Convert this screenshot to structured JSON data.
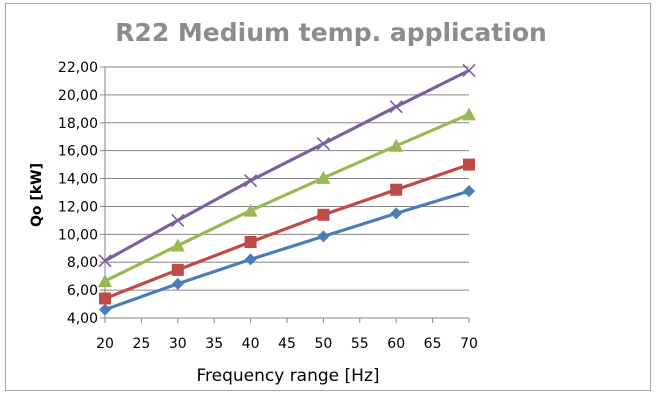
{
  "chart_data": {
    "type": "line",
    "title": "R22 Medium temp. application",
    "xlabel": "Frequency range [Hz]",
    "ylabel": "Qo [kW]",
    "xlim": [
      20,
      70
    ],
    "ylim": [
      4,
      22
    ],
    "x_ticks": [
      "20",
      "25",
      "30",
      "35",
      "40",
      "45",
      "50",
      "55",
      "60",
      "65",
      "70"
    ],
    "y_ticks": [
      "4,00",
      "6,00",
      "8,00",
      "10,00",
      "12,00",
      "14,00",
      "16,00",
      "18,00",
      "20,00",
      "22,00"
    ],
    "grid": true,
    "legend": "none",
    "x": [
      20,
      30,
      40,
      50,
      60,
      70
    ],
    "series": [
      {
        "marker": "diamond",
        "color": "#4a7ebb",
        "values": [
          4.6,
          6.45,
          8.2,
          9.85,
          11.5,
          13.1
        ]
      },
      {
        "marker": "square",
        "color": "#be4b48",
        "values": [
          5.4,
          7.45,
          9.45,
          11.4,
          13.2,
          15.0
        ]
      },
      {
        "marker": "triangle",
        "color": "#98b954",
        "values": [
          6.65,
          9.2,
          11.7,
          14.05,
          16.35,
          18.6
        ]
      },
      {
        "marker": "x",
        "color": "#7d5fa0",
        "values": [
          8.1,
          11.0,
          13.85,
          16.5,
          19.15,
          21.75
        ]
      }
    ]
  }
}
